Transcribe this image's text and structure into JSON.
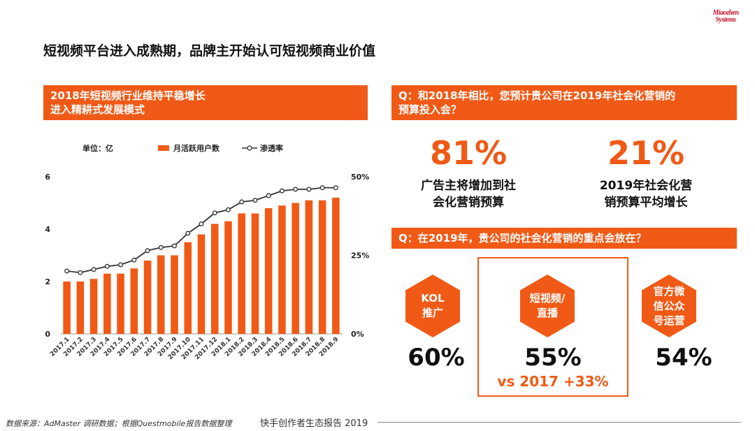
{
  "logo": {
    "line1": "Miaozhen",
    "line2": "Systems"
  },
  "title": "短视频平台进入成熟期，品牌主开始认可短视频商业价值",
  "chart_banner": {
    "line1": "2018年短视频行业维持平稳增长",
    "line2": "进入精耕式发展模式"
  },
  "chart_data": {
    "type": "bar+line",
    "unit_label": "单位：亿",
    "legend": [
      "月活跃用户数",
      "渗透率"
    ],
    "categories": [
      "2017.1",
      "2017.2",
      "2017.3",
      "2017.4",
      "2017.5",
      "2017.6",
      "2017.7",
      "2017.8",
      "2017.9",
      "2017.10",
      "2017.11",
      "2017.12",
      "2018.1",
      "2018.2",
      "2018.3",
      "2018.4",
      "2018.5",
      "2018.6",
      "2018.7",
      "2018.8",
      "2018.9"
    ],
    "series": [
      {
        "name": "月活跃用户数",
        "type": "bar",
        "axis": "left",
        "values": [
          2.0,
          2.0,
          2.1,
          2.3,
          2.3,
          2.5,
          2.8,
          3.0,
          3.0,
          3.5,
          3.8,
          4.2,
          4.3,
          4.6,
          4.6,
          4.8,
          4.9,
          5.0,
          5.1,
          5.1,
          5.2
        ]
      },
      {
        "name": "渗透率",
        "type": "line",
        "axis": "right",
        "values": [
          20,
          19.5,
          20.5,
          21.5,
          22,
          23.5,
          26.5,
          27.5,
          28,
          32,
          35,
          38.5,
          39.5,
          42,
          42.5,
          44,
          45.5,
          46,
          46,
          46.5,
          46.5
        ]
      }
    ],
    "y_left": {
      "min": 0,
      "max": 6,
      "ticks": [
        "0",
        "2",
        "4",
        "6"
      ]
    },
    "y_right": {
      "min": 0,
      "max": 50,
      "ticks": [
        "0%",
        "25%",
        "50%"
      ]
    }
  },
  "q1": {
    "line1": "Q：和2018年相比，您预计贵公司在2019年社会化营销的",
    "line2": "预算投入会？"
  },
  "stat1": {
    "value": "81%",
    "line1": "广告主将增加到社",
    "line2": "会化营销预算"
  },
  "stat2": {
    "value": "21%",
    "line1": "2019年社会化营",
    "line2": "销预算平均增长"
  },
  "q2": {
    "text": "Q：在2019年，贵公司的社会化营销的重点会放在？"
  },
  "focus": [
    {
      "line1": "KOL",
      "line2": "推广",
      "line3": "",
      "pct": "60%"
    },
    {
      "line1": "短视频/",
      "line2": "直播",
      "line3": "",
      "pct": "55%"
    },
    {
      "line1": "官方微",
      "line2": "信公众",
      "line3": "号运营",
      "pct": "54%"
    }
  ],
  "vs_text": "vs 2017 +33%",
  "footer": {
    "source": "数据来源：AdMaster 调研数据；根据Questmobile报告数据整理",
    "report": "快手创作者生态报告 2019"
  }
}
